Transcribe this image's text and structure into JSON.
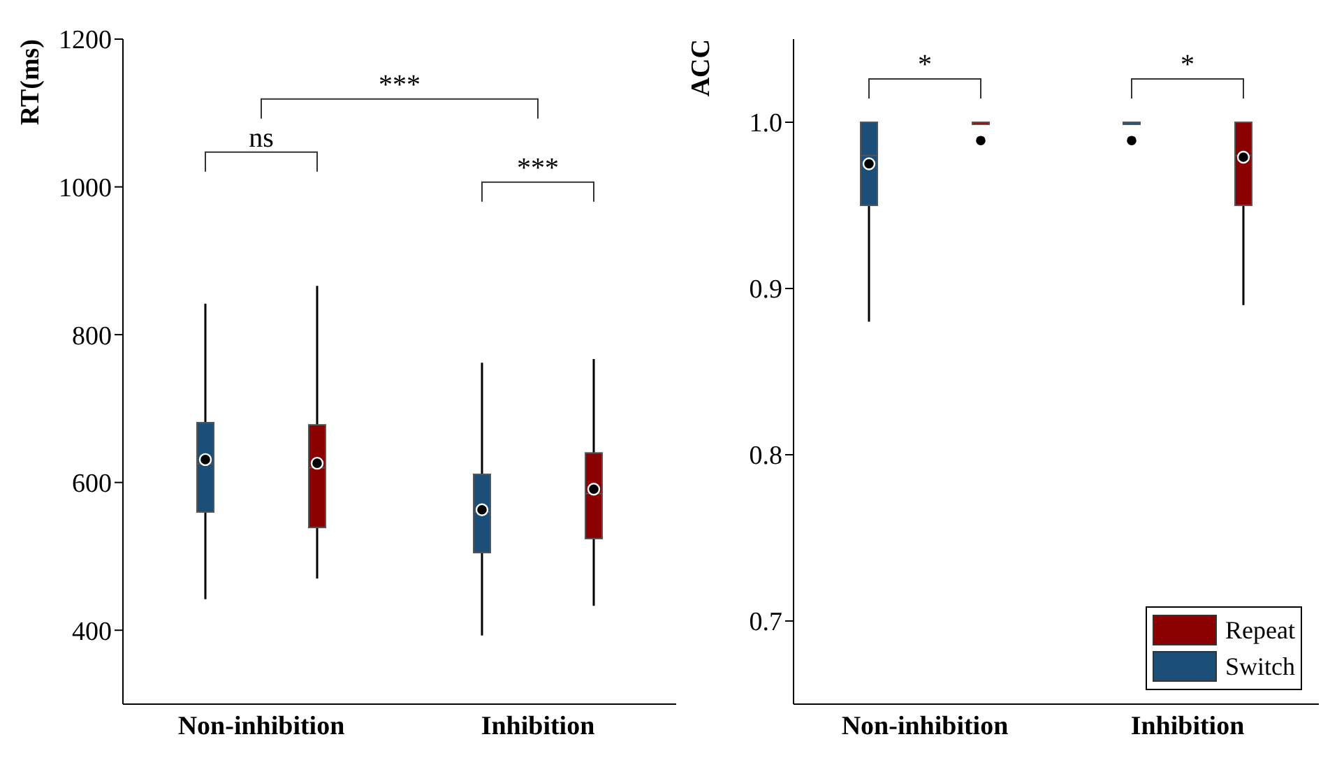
{
  "chart_data": [
    {
      "type": "box",
      "ylabel": "RT(ms)",
      "categories": [
        "Non-inhibition",
        "Inhibition"
      ],
      "ylim": [
        300,
        1200
      ],
      "yticks": [
        400,
        600,
        800,
        1000,
        1200
      ],
      "legend": false,
      "series": [
        {
          "color": "#1b4f79",
          "boxes": [
            {
              "low": 442,
              "q1": 560,
              "median": 625,
              "q3": 681,
              "high": 842,
              "mean": 631
            },
            {
              "low": 393,
              "q1": 505,
              "median": 560,
              "q3": 611,
              "high": 762,
              "mean": 563
            }
          ]
        },
        {
          "color": "#8b0000",
          "boxes": [
            {
              "low": 470,
              "q1": 539,
              "median": 620,
              "q3": 678,
              "high": 866,
              "mean": 626
            },
            {
              "low": 433,
              "q1": 524,
              "median": 585,
              "q3": 640,
              "high": 767,
              "mean": 591
            }
          ]
        }
      ],
      "annotations": [
        "ns",
        "***",
        "***"
      ]
    },
    {
      "type": "box",
      "ylabel": "ACC",
      "categories": [
        "Non-inhibition",
        "Inhibition"
      ],
      "ylim": [
        0.65,
        1.05
      ],
      "yticks": [
        0.7,
        0.8,
        0.9,
        {
          "value": 1,
          "label": "1.0"
        }
      ],
      "legend": "bottom right",
      "series": [
        {
          "name": "Switch",
          "color": "#1b4f79",
          "boxes": [
            {
              "low": 0.88,
              "q1": 0.95,
              "median": 0.98,
              "q3": 1,
              "high": 1,
              "mean": 0.975
            },
            {
              "low": 1,
              "q1": 1,
              "median": 1,
              "q3": 1,
              "high": 1,
              "mean": 0.989
            }
          ]
        },
        {
          "name": "Repeat",
          "color": "#8b0000",
          "boxes": [
            {
              "low": 1,
              "q1": 1,
              "median": 1,
              "q3": 1,
              "high": 1,
              "mean": 0.989
            },
            {
              "low": 0.89,
              "q1": 0.95,
              "median": 0.98,
              "q3": 1,
              "high": 1,
              "mean": 0.979
            }
          ]
        }
      ],
      "annotations": [
        "*",
        "*"
      ]
    }
  ]
}
